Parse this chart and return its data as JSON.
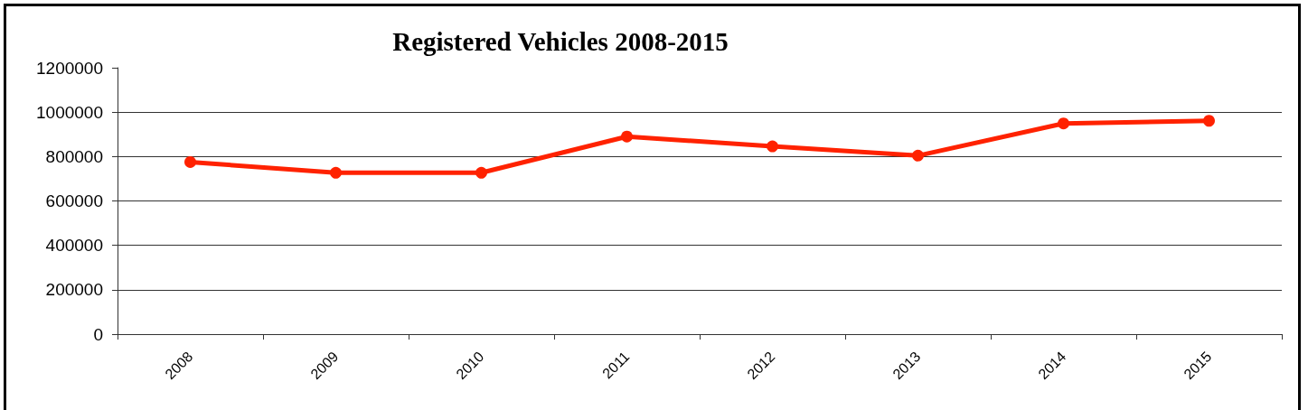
{
  "chart_data": {
    "type": "line",
    "title": "Registered Vehicles 2008-2015",
    "categories": [
      "2008",
      "2009",
      "2010",
      "2011",
      "2012",
      "2013",
      "2014",
      "2015"
    ],
    "values": [
      775000,
      727000,
      727000,
      890000,
      846000,
      804000,
      949000,
      961000
    ],
    "color": "#ff2200",
    "ylim": [
      0,
      1200000
    ],
    "yticks": [
      0,
      200000,
      400000,
      600000,
      800000,
      1000000,
      1200000
    ],
    "grid": "y",
    "marker": "circle",
    "line_style": "solid"
  }
}
